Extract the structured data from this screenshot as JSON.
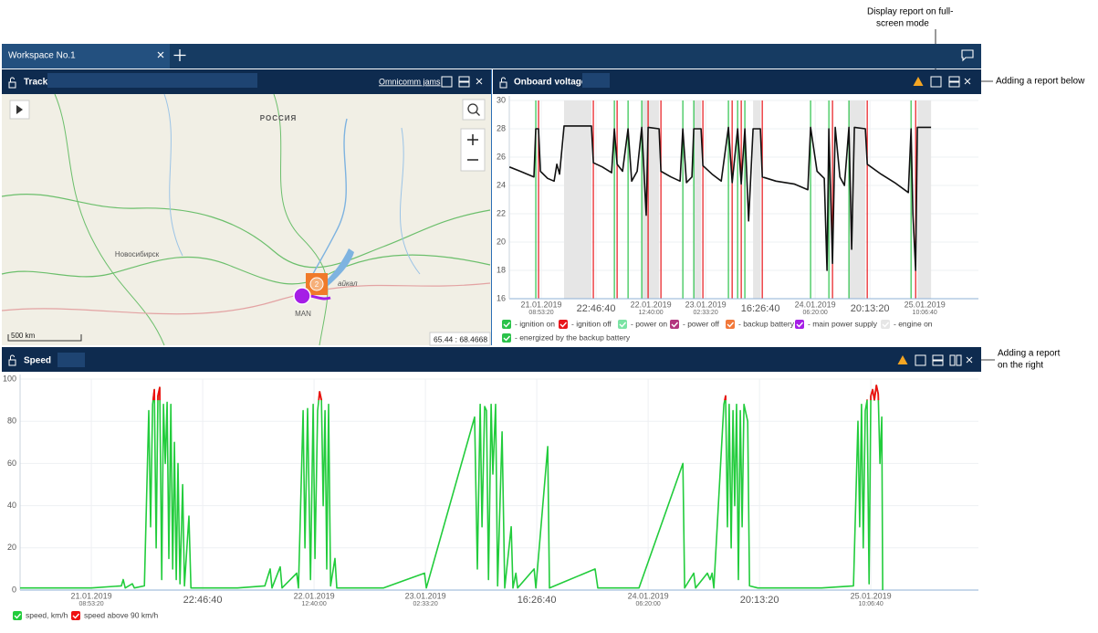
{
  "annotations": {
    "fullscreen": [
      "Display report on full-",
      "screen mode"
    ],
    "below": "Adding a report below",
    "right": [
      "Adding a report",
      "on the right"
    ]
  },
  "workspace": {
    "tab": "Workspace No.1"
  },
  "track": {
    "title": "Track",
    "link": "Omnicomm jams",
    "map": {
      "country": "РОССИЯ",
      "city": "Новосибирск",
      "lake": "айкал",
      "vehicle": "MAN",
      "cluster": "2",
      "scale": "500 km",
      "coords": "65.44 : 68.4668"
    }
  },
  "chart_data": [
    {
      "type": "line",
      "title": "Onboard voltage",
      "x": [
        -29000,
        -19200,
        -6700,
        -5000,
        -2500,
        -800,
        5800,
        11700,
        14200,
        16700,
        20800,
        45800,
        47500,
        55800,
        64200,
        66700,
        69200,
        74200,
        79200,
        82500,
        87500,
        91700,
        95800,
        97500,
        107500,
        109200,
        118300,
        126700,
        129200,
        132500,
        137500,
        139200,
        145800,
        147500,
        155800,
        164200,
        170800,
        174200,
        179200,
        182500,
        185800,
        189200,
        193300,
        200000,
        201700,
        214200,
        230800,
        243300,
        245800,
        251700,
        258300,
        260800,
        262500,
        265800,
        268300,
        272500,
        276700,
        280800,
        283300,
        285800,
        295800,
        297500,
        310000,
        322500,
        335000,
        337500,
        339200,
        341700,
        343300,
        355800
      ],
      "series": [
        {
          "color": "#111111",
          "values": [
            25.3,
            25.0,
            24.6,
            28.0,
            28.0,
            25.0,
            24.5,
            24.3,
            25.5,
            24.8,
            28.2,
            28.2,
            25.6,
            25.3,
            24.9,
            28.0,
            25.5,
            25.0,
            28.0,
            24.3,
            25.0,
            28.1,
            21.9,
            28.1,
            28.0,
            25.0,
            24.6,
            24.3,
            28.0,
            24.2,
            24.6,
            28.0,
            28.0,
            25.4,
            24.8,
            24.3,
            28.1,
            24.2,
            28.0,
            24.1,
            28.0,
            21.5,
            28.0,
            28.0,
            24.6,
            24.3,
            24.1,
            23.7,
            28.1,
            25.0,
            24.5,
            18.0,
            28.0,
            18.5,
            28.1,
            24.6,
            24.0,
            28.1,
            19.5,
            28.1,
            28.0,
            25.5,
            24.8,
            24.2,
            23.5,
            28.0,
            22.0,
            18.0,
            28.1,
            28.1
          ]
        }
      ],
      "legend": [
        {
          "name": "- ignition on",
          "color": "#2bc24a",
          "x": [
            -5000,
            66700,
            79200,
            91700,
            129200,
            139200,
            170800,
            179200,
            185800,
            245800,
            262500,
            280800,
            337500
          ]
        },
        {
          "name": "- ignition off",
          "color": "#e8161b",
          "x": [
            -2500,
            47500,
            69200,
            97500,
            109200,
            147500,
            174200,
            182500,
            201700,
            265800,
            297500,
            341700
          ]
        },
        {
          "name": "- power on",
          "color": "#7be3a4"
        },
        {
          "name": "- power off",
          "color": "#b3347e"
        },
        {
          "name": "- backup battery",
          "color": "#f2783a"
        },
        {
          "name": "- main power supply",
          "color": "#a51ee6"
        },
        {
          "name": "- engine on",
          "color": "#e6e6e6",
          "intervals": [
            [
              20800,
              45800
            ],
            [
              91700,
              107500
            ],
            [
              139200,
              145800
            ],
            [
              193300,
              200000
            ],
            [
              280800,
              295800
            ],
            [
              343300,
              355800
            ]
          ]
        },
        {
          "name": "- energized by the backup battery",
          "color": "#2bc24a"
        }
      ],
      "xlim": [
        -29200,
        399000
      ],
      "xticks": [
        {
          "value": 0,
          "label": "21.01.2019",
          "label2": "08:53:20"
        },
        {
          "value": 50000,
          "label": "22:46:40"
        },
        {
          "value": 100000,
          "label": "22.01.2019",
          "label2": "12:40:00"
        },
        {
          "value": 150000,
          "label": "23.01.2019",
          "label2": "02:33:20"
        },
        {
          "value": 200000,
          "label": "16:26:40"
        },
        {
          "value": 250000,
          "label": "24.01.2019",
          "label2": "06:20:00"
        },
        {
          "value": 300000,
          "label": "20:13:20"
        },
        {
          "value": 350000,
          "label": "25.01.2019",
          "label2": "10:06:40"
        }
      ],
      "ylim": [
        16,
        30
      ],
      "yticks": [
        16,
        18,
        20,
        22,
        24,
        26,
        28,
        30
      ],
      "grid": true
    },
    {
      "type": "line",
      "title": "Speed",
      "x": [
        -32000,
        -16400,
        0,
        13500,
        14300,
        15200,
        18400,
        19300,
        23800,
        25800,
        26600,
        27500,
        28300,
        29100,
        29900,
        30700,
        31600,
        32400,
        33200,
        34000,
        34800,
        35700,
        36500,
        37300,
        38100,
        38900,
        39800,
        41000,
        41800,
        43800,
        44700,
        53300,
        65600,
        77900,
        80300,
        81100,
        84800,
        85600,
        92200,
        93000,
        95100,
        95900,
        97100,
        98400,
        99600,
        100400,
        101600,
        102500,
        103300,
        104100,
        104900,
        105700,
        106500,
        107400,
        109400,
        110200,
        131100,
        149600,
        150400,
        172100,
        173300,
        174600,
        175400,
        176600,
        177400,
        178300,
        179500,
        180300,
        181500,
        182400,
        184400,
        185600,
        188500,
        189300,
        190600,
        191400,
        198800,
        199600,
        204900,
        205700,
        226200,
        227400,
        245900,
        265600,
        266400,
        270500,
        271300,
        276600,
        277800,
        278700,
        279500,
        284000,
        284800,
        285600,
        286400,
        287300,
        288100,
        288900,
        289700,
        290500,
        291400,
        292200,
        293000,
        294700,
        295500,
        299200,
        327900,
        342200,
        344200,
        345000,
        345800,
        346600,
        347500,
        348300,
        349200,
        350000,
        350800,
        351600,
        352500,
        353300,
        354100,
        354900,
        355300
      ],
      "series": [
        {
          "name": "speed, km/h",
          "color": "#22cc3c",
          "values": [
            1,
            1,
            1,
            2,
            5,
            1,
            3,
            1,
            2,
            85,
            30,
            88,
            95,
            20,
            92,
            96,
            5,
            88,
            60,
            89,
            15,
            88,
            10,
            70,
            5,
            60,
            3,
            50,
            2,
            35,
            1,
            1,
            1,
            2,
            10,
            1,
            11,
            1,
            8,
            1,
            85,
            20,
            86,
            5,
            88,
            15,
            85,
            94,
            90,
            40,
            85,
            10,
            88,
            2,
            15,
            1,
            1,
            8,
            1,
            82,
            10,
            88,
            30,
            87,
            85,
            5,
            88,
            55,
            88,
            2,
            75,
            1,
            30,
            1,
            8,
            1,
            10,
            1,
            68,
            1,
            10,
            1,
            1,
            60,
            1,
            8,
            1,
            8,
            5,
            8,
            1,
            88,
            92,
            30,
            88,
            20,
            85,
            40,
            88,
            5,
            85,
            30,
            88,
            80,
            2,
            1,
            1,
            2,
            80,
            30,
            88,
            20,
            85,
            90,
            3,
            92,
            95,
            90,
            97,
            93,
            60,
            82,
            0
          ]
        },
        {
          "name": "speed above 90 km/h",
          "color": "#ee1111",
          "threshold": 90
        }
      ],
      "xlim": [
        -32000,
        398300
      ],
      "xticks": [
        {
          "value": 0,
          "label": "21.01.2019",
          "label2": "08:53:20"
        },
        {
          "value": 50000,
          "label": "22:46:40"
        },
        {
          "value": 100000,
          "label": "22.01.2019",
          "label2": "12:40:00"
        },
        {
          "value": 150000,
          "label": "23.01.2019",
          "label2": "02:33:20"
        },
        {
          "value": 200000,
          "label": "16:26:40"
        },
        {
          "value": 250000,
          "label": "24.01.2019",
          "label2": "06:20:00"
        },
        {
          "value": 300000,
          "label": "20:13:20"
        },
        {
          "value": 350000,
          "label": "25.01.2019",
          "label2": "10:06:40"
        }
      ],
      "ylim": [
        0,
        100
      ],
      "yticks": [
        0,
        20,
        40,
        60,
        80,
        100
      ],
      "grid": true
    }
  ]
}
